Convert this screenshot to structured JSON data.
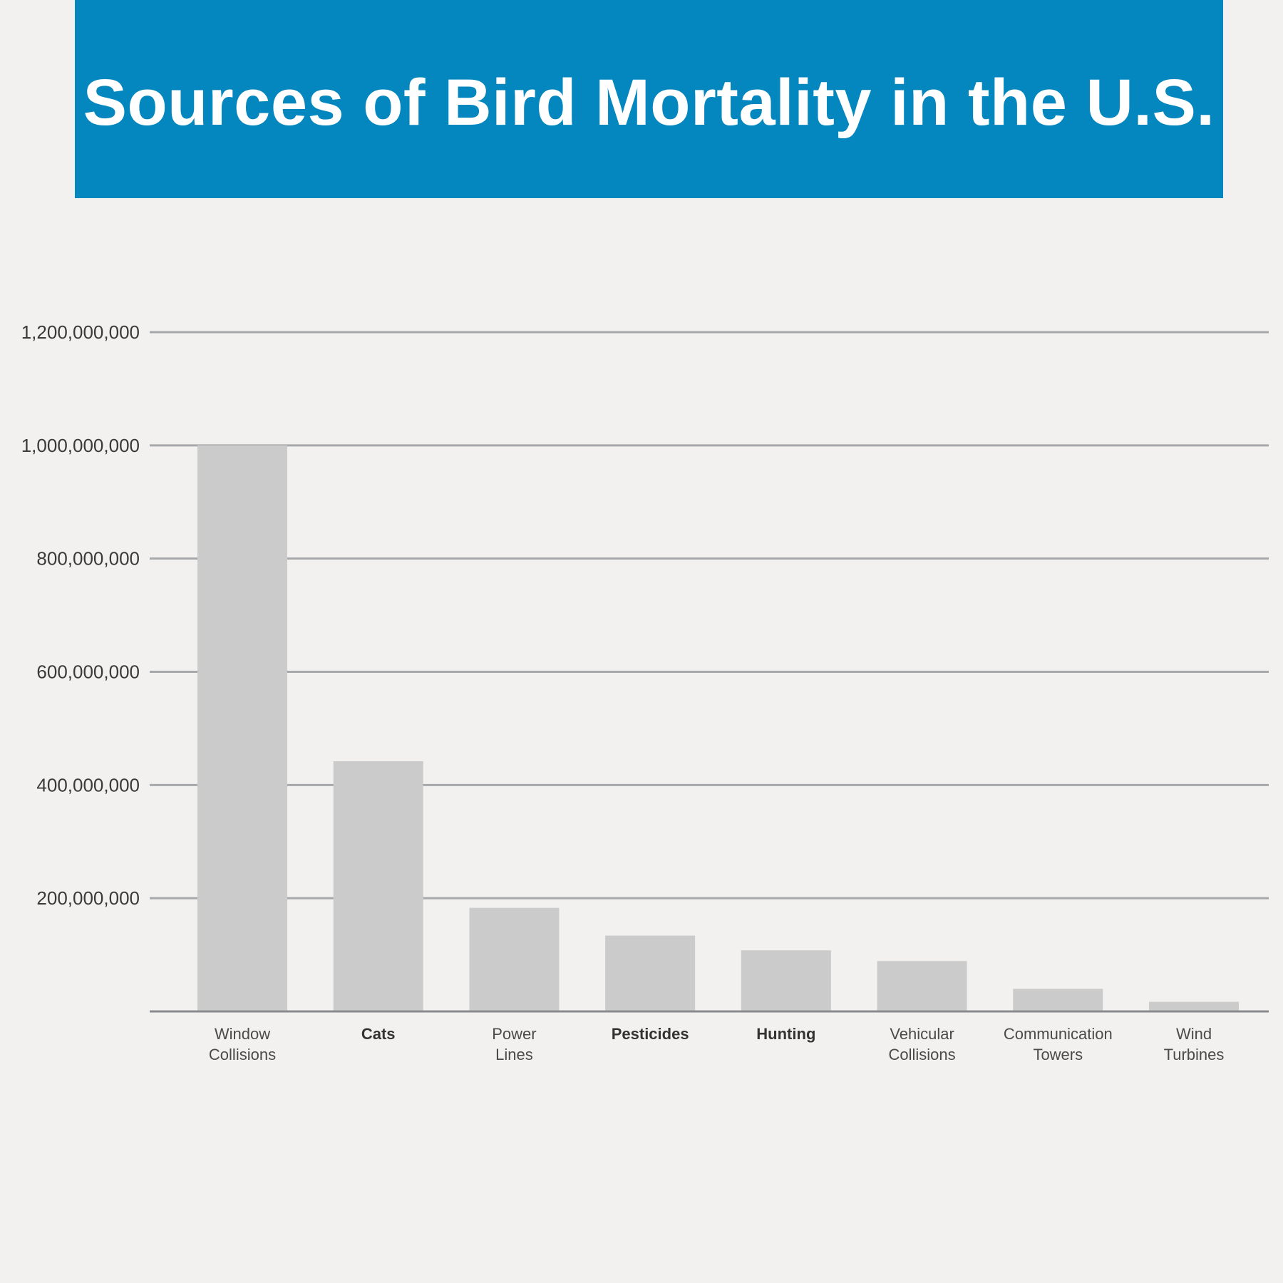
{
  "header": {
    "title": "Sources of Bird Mortality in the U.S."
  },
  "colors": {
    "banner": "#0486bf",
    "title_text": "#ffffff",
    "background": "#f2f1ef",
    "bar": "#cbcbcc",
    "gridline": "#a7a8ab",
    "baseline": "#8a8b8e"
  },
  "chart_data": {
    "type": "bar",
    "title": "Sources of Bird Mortality in the U.S.",
    "xlabel": "",
    "ylabel": "",
    "ylim": [
      0,
      1200000000
    ],
    "grid": true,
    "y_ticks": [
      {
        "value": 200000000,
        "label": "200,000,000"
      },
      {
        "value": 400000000,
        "label": "400,000,000"
      },
      {
        "value": 600000000,
        "label": "600,000,000"
      },
      {
        "value": 800000000,
        "label": "800,000,000"
      },
      {
        "value": 1000000000,
        "label": "1,000,000,000"
      },
      {
        "value": 1200000000,
        "label": "1,200,000,000"
      }
    ],
    "categories": [
      {
        "label_lines": [
          "Window",
          "Collisions"
        ],
        "bold": false
      },
      {
        "label_lines": [
          "Cats"
        ],
        "bold": true
      },
      {
        "label_lines": [
          "Power",
          "Lines"
        ],
        "bold": false
      },
      {
        "label_lines": [
          "Pesticides"
        ],
        "bold": true
      },
      {
        "label_lines": [
          "Hunting"
        ],
        "bold": true
      },
      {
        "label_lines": [
          "Vehicular",
          "Collisions"
        ],
        "bold": false
      },
      {
        "label_lines": [
          "Communication",
          "Towers"
        ],
        "bold": false
      },
      {
        "label_lines": [
          "Wind",
          "Turbines"
        ],
        "bold": false
      }
    ],
    "values": [
      1000000000,
      442000000,
      183000000,
      134000000,
      108000000,
      89000000,
      40000000,
      17000000
    ]
  }
}
